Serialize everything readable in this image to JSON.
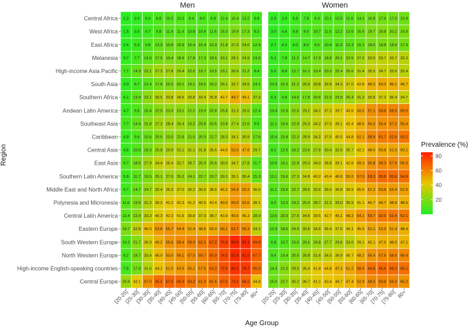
{
  "chart_data": {
    "type": "heatmap",
    "facets": [
      "Men",
      "Women"
    ],
    "xlabel": "Age Group",
    "ylabel": "Region",
    "legend_title": "Prevalence (%)",
    "legend_ticks": [
      20,
      40,
      60,
      80
    ],
    "color_scale": {
      "min": 0,
      "max": 85,
      "colors": [
        "#22ee22",
        "#e8c800",
        "#ff2000"
      ]
    },
    "x_categories": [
      "[20-25]",
      "[25-30]",
      "[30-35]",
      "[35-40]",
      "[40-45]",
      "[45-50]",
      "[50-55]",
      "[55-60]",
      "[60-65]",
      "[65-70]",
      "[70-75]",
      "[75-80]",
      "80+"
    ],
    "regions": [
      "Central Africa",
      "West Africa",
      "East Africa",
      "Melanesia",
      "High-income Asia Pacific",
      "South Asia",
      "Southern Africa",
      "Andean Latin America",
      "Southeast Asia",
      "Caribbean",
      "Central Asia",
      "East Asia",
      "Southern Latin America",
      "Middle East and North Africa",
      "Polynesia and Micronesia",
      "Central Latin America",
      "Eastern Europe",
      "South Western Europe",
      "North Western Europe",
      "High-income English-speaking countries",
      "Central Europe"
    ],
    "men": [
      [
        "1.3",
        "3.0",
        "5.9",
        "8.8",
        "10.2",
        "10.2",
        "9.4",
        "9.0",
        "9.8",
        "12.4",
        "15.4",
        "13.2",
        "6.8"
      ],
      [
        "1.5",
        "3.5",
        "6.7",
        "9.8",
        "11.4",
        "11.4",
        "10.8",
        "10.6",
        "11.6",
        "15.3",
        "19.9",
        "17.3",
        "8.3"
      ],
      [
        "2.4",
        "5.3",
        "9.8",
        "13.9",
        "15.8",
        "15.9",
        "15.4",
        "15.4",
        "16.9",
        "21.8",
        "27.0",
        "24.0",
        "12.4"
      ],
      [
        "3.7",
        "7.7",
        "13.0",
        "17.5",
        "19.4",
        "18.9",
        "17.8",
        "17.3",
        "18.6",
        "23.1",
        "28.1",
        "24.9",
        "13.0"
      ],
      [
        "7.7",
        "14.3",
        "22.1",
        "27.3",
        "27.8",
        "25.4",
        "22.0",
        "19.7",
        "19.5",
        "23.1",
        "26.9",
        "21.2",
        "8.4"
      ],
      [
        "3.0",
        "6.7",
        "12.4",
        "17.8",
        "20.2",
        "20.1",
        "19.1",
        "18.6",
        "20.2",
        "26.1",
        "32.7",
        "28.5",
        "14.1"
      ],
      [
        "6.1",
        "13.4",
        "23.1",
        "30.5",
        "33.8",
        "34.5",
        "33.8",
        "33.4",
        "35.8",
        "42.7",
        "49.7",
        "45.1",
        "27.3"
      ],
      [
        "4.7",
        "9.6",
        "16.4",
        "22.0",
        "23.9",
        "23.1",
        "21.2",
        "19.9",
        "20.8",
        "25.8",
        "31.3",
        "26.5",
        "12.4"
      ],
      [
        "7.7",
        "14.4",
        "21.8",
        "27.2",
        "28.4",
        "26.4",
        "23.2",
        "20.8",
        "20.5",
        "23.8",
        "27.4",
        "22.6",
        "9.5"
      ],
      [
        "4.9",
        "9.6",
        "15.6",
        "20.6",
        "23.0",
        "22.8",
        "21.5",
        "20.9",
        "22.7",
        "28.3",
        "34.1",
        "30.9",
        "17.6"
      ],
      [
        "4.5",
        "10.0",
        "18.3",
        "25.8",
        "29.9",
        "31.1",
        "31.1",
        "31.8",
        "35.6",
        "44.0",
        "52.0",
        "47.8",
        "29.7"
      ],
      [
        "9.7",
        "18.0",
        "27.9",
        "34.4",
        "35.4",
        "32.7",
        "28.7",
        "25.9",
        "25.6",
        "30.0",
        "34.7",
        "27.8",
        "11.7"
      ],
      [
        "5.8",
        "11.7",
        "19.5",
        "25.1",
        "27.0",
        "26.2",
        "24.1",
        "22.7",
        "23.7",
        "29.1",
        "35.1",
        "30.4",
        "15.3"
      ],
      [
        "6.7",
        "14.7",
        "24.7",
        "32.4",
        "36.3",
        "37.0",
        "36.2",
        "36.5",
        "38.6",
        "46.2",
        "54.9",
        "52.2",
        "36.6"
      ],
      [
        "11.6",
        "19.9",
        "31.2",
        "39.2",
        "42.2",
        "42.3",
        "41.2",
        "40.5",
        "42.4",
        "49.0",
        "55.0",
        "52.6",
        "38.1"
      ],
      [
        "12.4",
        "22.4",
        "33.3",
        "40.3",
        "42.2",
        "41.6",
        "39.8",
        "37.9",
        "38.7",
        "43.9",
        "49.5",
        "45.3",
        "28.9"
      ],
      [
        "19.7",
        "32.8",
        "46.0",
        "53.8",
        "55.7",
        "54.4",
        "51.4",
        "48.8",
        "50.0",
        "56.1",
        "61.7",
        "56.3",
        "34.2"
      ],
      [
        "10.2",
        "21.7",
        "36.9",
        "49.2",
        "55.6",
        "58.4",
        "59.9",
        "62.1",
        "67.2",
        "76.0",
        "83.0",
        "82.1",
        "69.9"
      ],
      [
        "8.2",
        "18.7",
        "33.4",
        "46.0",
        "53.0",
        "56.1",
        "57.5",
        "59.7",
        "65.0",
        "74.0",
        "81.9",
        "81.0",
        "67.7"
      ],
      [
        "7.5",
        "17.3",
        "31.6",
        "44.1",
        "51.0",
        "53.9",
        "55.1",
        "57.5",
        "63.2",
        "72.6",
        "80.2",
        "78.7",
        "65.0"
      ],
      [
        "25.9",
        "42.1",
        "57.0",
        "65.2",
        "67.5",
        "66.3",
        "63.2",
        "61.0",
        "61.6",
        "67.6",
        "73.1",
        "68.2",
        "44.8"
      ]
    ],
    "women": [
      [
        "2.5",
        "3.9",
        "5.8",
        "7.8",
        "9.3",
        "10.1",
        "10.5",
        "11.6",
        "14.1",
        "16.8",
        "17.6",
        "17.0",
        "15.9"
      ],
      [
        "3.0",
        "4.6",
        "6.8",
        "9.0",
        "10.7",
        "11.5",
        "12.2",
        "13.5",
        "16.5",
        "19.7",
        "20.8",
        "20.2",
        "19.0"
      ],
      [
        "2.7",
        "4.2",
        "6.0",
        "8.0",
        "9.5",
        "10.4",
        "11.0",
        "12.3",
        "15.1",
        "18.0",
        "18.8",
        "18.4",
        "17.3"
      ],
      [
        "5.1",
        "7.8",
        "11.2",
        "14.7",
        "17.3",
        "18.8",
        "20.1",
        "22.5",
        "27.2",
        "32.0",
        "33.7",
        "33.7",
        "32.2"
      ],
      [
        "5.5",
        "8.8",
        "12.7",
        "16.1",
        "19.4",
        "20.3",
        "22.4",
        "25.6",
        "31.4",
        "35.5",
        "34.7",
        "33.9",
        "32.4"
      ],
      [
        "10.3",
        "15.3",
        "21.2",
        "26.9",
        "30.8",
        "32.8",
        "34.3",
        "37.0",
        "42.8",
        "48.3",
        "50.0",
        "49.1",
        "46.7"
      ],
      [
        "6.3",
        "9.8",
        "14.0",
        "17.8",
        "20.6",
        "22.3",
        "23.9",
        "26.4",
        "31.2",
        "35.8",
        "37.2",
        "36.4",
        "34.7"
      ],
      [
        "10.4",
        "15.9",
        "22.6",
        "29.2",
        "34.2",
        "37.2",
        "39.7",
        "43.6",
        "50.5",
        "57.1",
        "59.8",
        "59.9",
        "59.0"
      ],
      [
        "11.1",
        "16.6",
        "22.9",
        "29.3",
        "34.2",
        "37.0",
        "39.1",
        "42.4",
        "48.5",
        "54.3",
        "56.4",
        "57.2",
        "55.4"
      ],
      [
        "10.4",
        "15.8",
        "22.3",
        "28.9",
        "34.2",
        "37.5",
        "40.5",
        "44.8",
        "52.1",
        "58.8",
        "61.7",
        "62.6",
        "63.2"
      ],
      [
        "8.2",
        "12.5",
        "18.2",
        "23.6",
        "27.8",
        "30.4",
        "32.5",
        "35.7",
        "42.1",
        "48.5",
        "50.8",
        "51.0",
        "50.1"
      ],
      [
        "10.6",
        "16.1",
        "22.8",
        "29.3",
        "34.0",
        "36.8",
        "39.1",
        "42.8",
        "49.3",
        "55.8",
        "58.3",
        "57.9",
        "56.5"
      ],
      [
        "13.1",
        "19.6",
        "27.3",
        "34.8",
        "40.2",
        "43.4",
        "46.0",
        "50.0",
        "57.0",
        "63.3",
        "65.8",
        "65.9",
        "64.9"
      ],
      [
        "11.1",
        "16.6",
        "22.7",
        "28.5",
        "32.6",
        "35.0",
        "36.8",
        "39.9",
        "45.6",
        "51.3",
        "53.8",
        "53.4",
        "52.5"
      ],
      [
        "9.2",
        "13.2",
        "19.2",
        "25.0",
        "28.7",
        "31.3",
        "33.0",
        "35.9",
        "41.1",
        "46.7",
        "48.7",
        "48.8",
        "48.5"
      ],
      [
        "13.6",
        "20.0",
        "27.6",
        "34.6",
        "39.5",
        "42.7",
        "45.1",
        "48.2",
        "54.1",
        "59.7",
        "62.0",
        "62.4",
        "62.1"
      ],
      [
        "12.9",
        "18.5",
        "24.9",
        "30.8",
        "34.6",
        "36.4",
        "37.6",
        "40.1",
        "45.9",
        "51.1",
        "52.5",
        "51.4",
        "48.4"
      ],
      [
        "6.8",
        "10.7",
        "15.6",
        "20.6",
        "24.8",
        "27.7",
        "29.6",
        "33.0",
        "39.1",
        "45.1",
        "47.5",
        "48.0",
        "47.1"
      ],
      [
        "9.4",
        "14.4",
        "20.6",
        "26.8",
        "31.6",
        "34.5",
        "36.9",
        "40.7",
        "48.2",
        "55.4",
        "57.6",
        "58.6",
        "58.4"
      ],
      [
        "14.3",
        "21.0",
        "29.0",
        "36.4",
        "41.8",
        "44.8",
        "47.2",
        "51.2",
        "58.4",
        "64.6",
        "66.6",
        "66.2",
        "65.1"
      ],
      [
        "16.0",
        "22.7",
        "30.2",
        "36.7",
        "41.1",
        "43.4",
        "44.7",
        "47.4",
        "52.9",
        "58.3",
        "59.8",
        "59.3",
        "56.2"
      ]
    ]
  }
}
